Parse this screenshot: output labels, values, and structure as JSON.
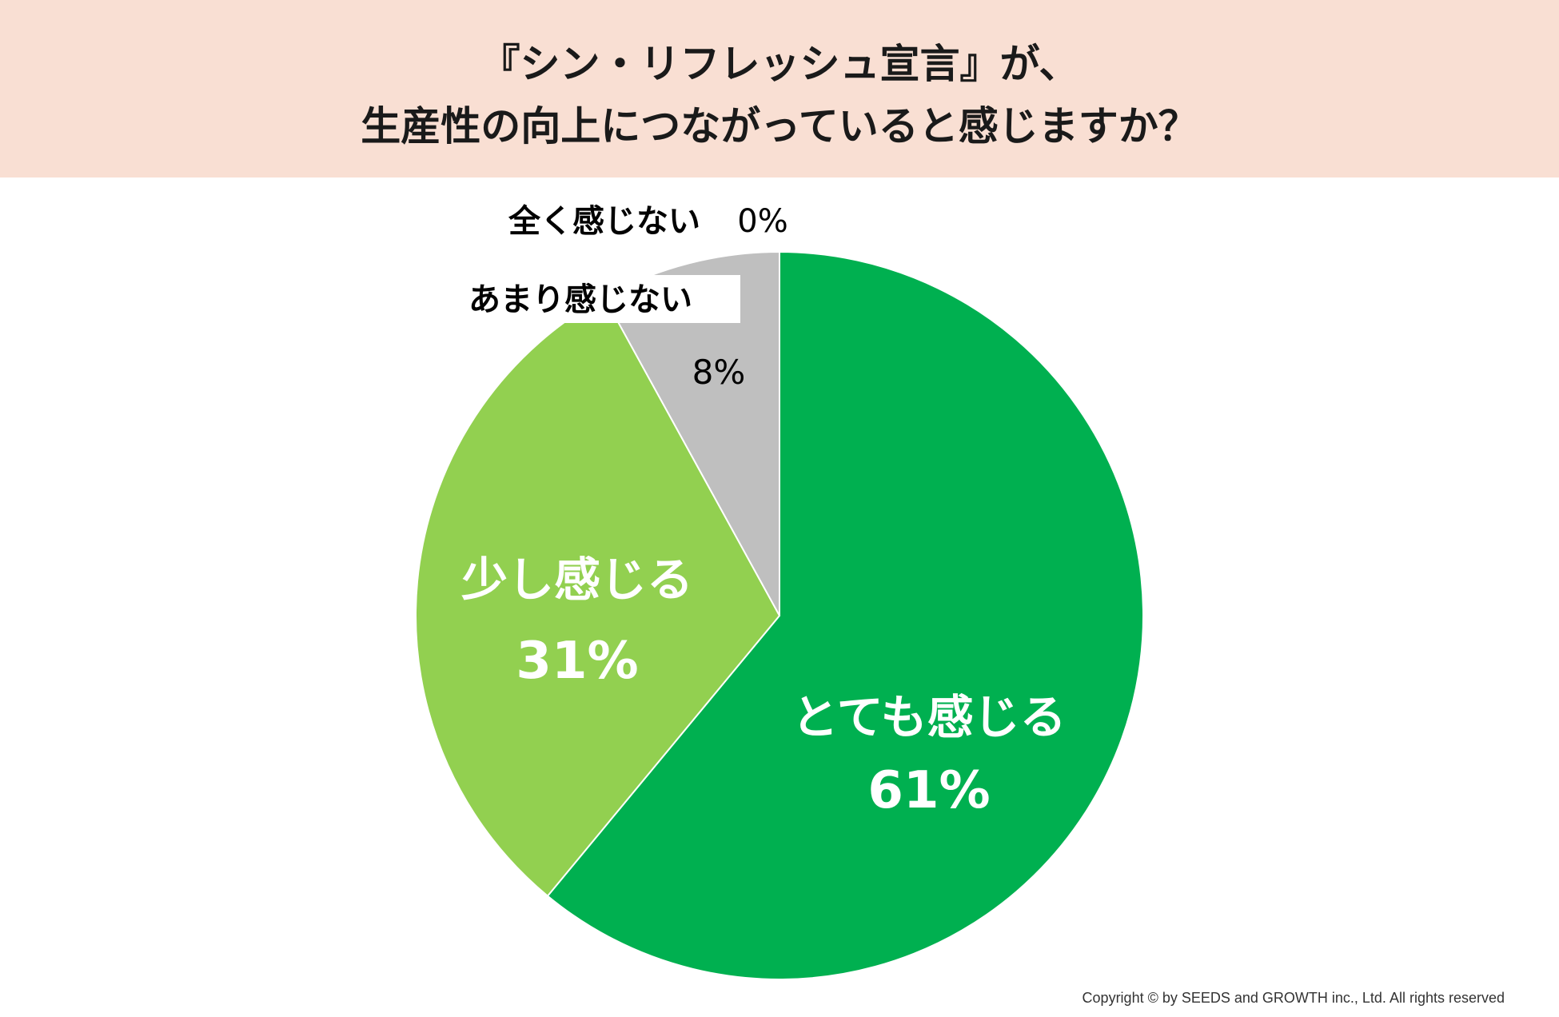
{
  "title": {
    "line1": "『シン・リフレッシュ宣言』が、",
    "line2": "生産性の向上につながっていると感じますか？"
  },
  "chart_data": {
    "type": "pie",
    "start": "12 o'clock",
    "direction": "clockwise",
    "slices": [
      {
        "label": "とても感じる",
        "value": 61,
        "display": "61%",
        "color": "#00b050",
        "label_color": "#ffffff",
        "label_placement": "inside"
      },
      {
        "label": "少し感じる",
        "value": 31,
        "display": "31%",
        "color": "#92d050",
        "label_color": "#ffffff",
        "label_placement": "inside"
      },
      {
        "label": "あまり感じない",
        "value": 8,
        "display": "8%",
        "color": "#bfbfbf",
        "label_color": "#000000",
        "label_placement": "outside"
      },
      {
        "label": "全く感じない",
        "value": 0,
        "display": "0%",
        "color": "#a6a6a6",
        "label_color": "#000000",
        "label_placement": "outside"
      }
    ]
  },
  "colors": {
    "header_bg": "#f9dfd3",
    "text": "#1a1a1a",
    "slice_border": "#ffffff"
  },
  "footer": {
    "copyright": "Copyright © by SEEDS and GROWTH inc., Ltd. All rights reserved"
  }
}
